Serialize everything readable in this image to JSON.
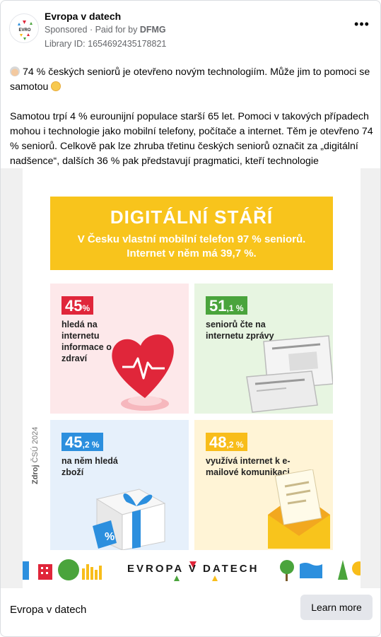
{
  "header": {
    "page_name": "Evropa v datech",
    "sponsored": "Sponsored",
    "paid_for_prefix": "Paid for by",
    "paid_for_by": "DFMG",
    "library_id": "Library ID: 1654692435178821",
    "more_icon": "more-options-icon"
  },
  "post": {
    "line1": "74 % českých seniorů je otevřeno novým technologiím. Může jim to pomoci se samotou",
    "line2": "Samotou trpí 4 % eurounijní populace starší 65 let. Pomoci v takových případech mohou i technologie jako mobilní telefony, počítače a internet. Těm je otevřeno 74 % seniorů. Celkově pak lze zhruba třetinu českých seniorů označit za „digitální nadšence“, dalších 36 % pak představují pragmatici, kteří technologie používají,…"
  },
  "poster": {
    "title": "DIGITÁLNÍ STÁŘÍ",
    "subtitle": "V Česku vlastní mobilní telefon 97 % seniorů. Internet v něm má 39,7 %.",
    "tiles": [
      {
        "value": "45",
        "unit": "%",
        "label": "hledá na internetu informace o zdraví",
        "color": "#e0263a"
      },
      {
        "value": "51",
        "unit": ",1 %",
        "label": "seniorů čte na internetu zprávy",
        "color": "#4aa43c"
      },
      {
        "value": "45",
        "unit": ",2 %",
        "label": "na něm hledá zboží",
        "color": "#2c8fde"
      },
      {
        "value": "48",
        "unit": ",2 %",
        "label": "využívá internet k e-mailové komunikaci",
        "color": "#f8bd1a"
      }
    ],
    "source_prefix": "Zdroj",
    "source": "ČSÚ 2024",
    "brand": "EVROPA V DATECH"
  },
  "footer": {
    "title": "Evropa v datech",
    "cta": "Learn more"
  }
}
